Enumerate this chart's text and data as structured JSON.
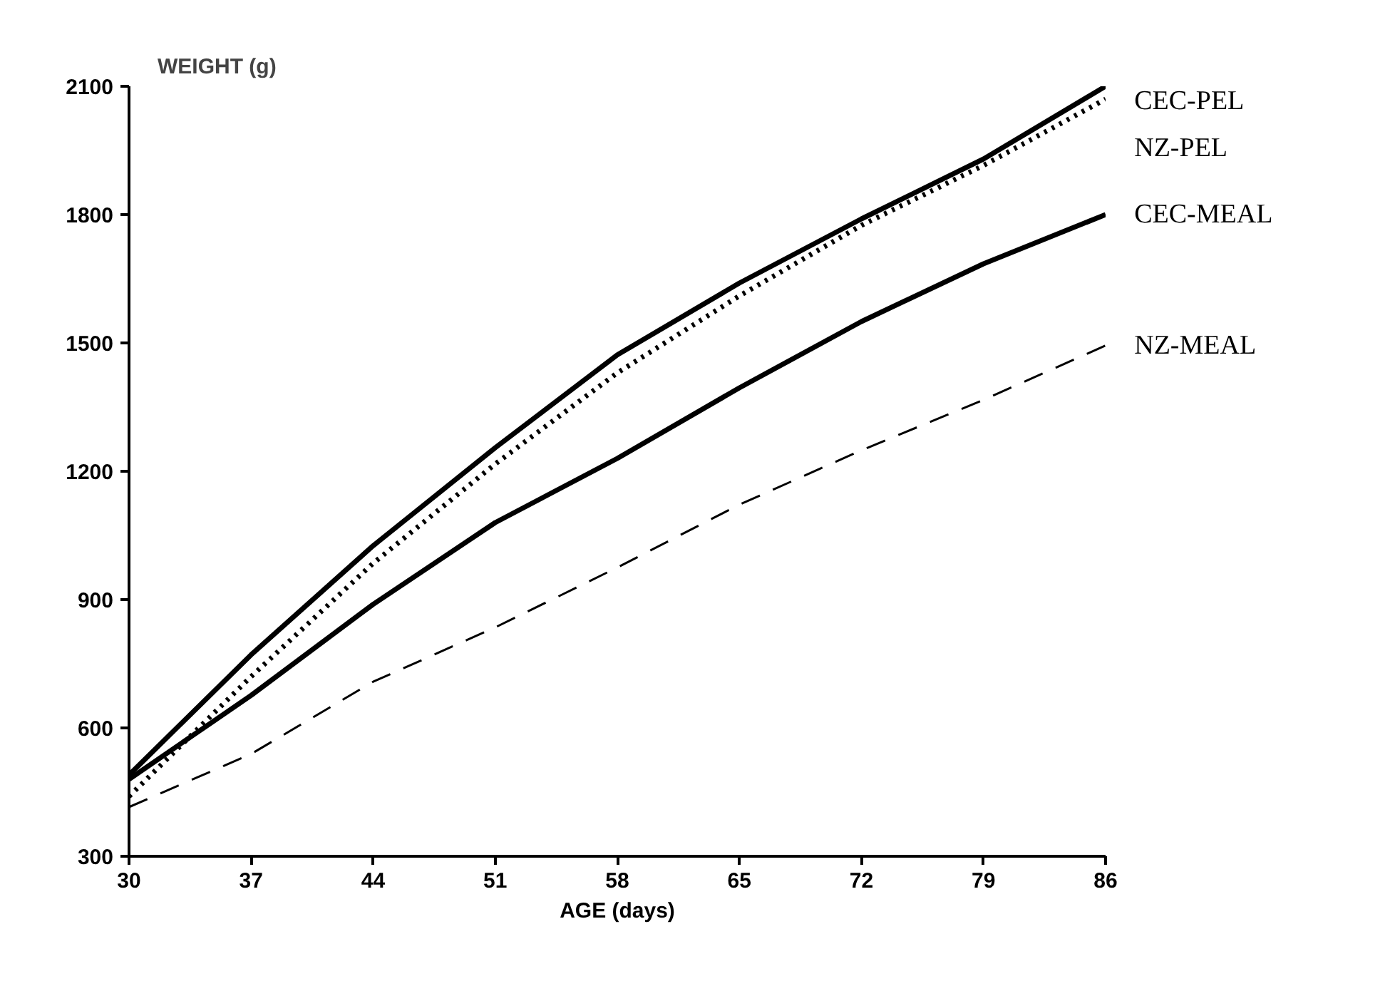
{
  "chart_data": {
    "type": "line",
    "xlabel": "AGE (days)",
    "ylabel": "WEIGHT (g)",
    "x": [
      30,
      37,
      44,
      51,
      58,
      65,
      72,
      79,
      86
    ],
    "xlim": [
      30,
      86
    ],
    "xticks": [
      30,
      37,
      44,
      51,
      58,
      65,
      72,
      79,
      86
    ],
    "ylim": [
      300,
      2100
    ],
    "yticks": [
      300,
      600,
      900,
      1200,
      1500,
      1800,
      2100
    ],
    "grid": false,
    "legend": false,
    "marker": "none",
    "series": [
      {
        "name": "CEC-PEL",
        "color": "#000000",
        "line_style": "solid",
        "values": [
          490,
          771,
          1026,
          1255,
          1472,
          1640,
          1790,
          1930,
          2100
        ]
      },
      {
        "name": "NZ-PEL",
        "color": "#000000",
        "line_style": "dotted",
        "values": [
          440,
          720,
          985,
          1217,
          1430,
          1610,
          1775,
          1915,
          2070
        ]
      },
      {
        "name": "CEC-MEAL",
        "color": "#000000",
        "line_style": "solid",
        "values": [
          480,
          676,
          889,
          1080,
          1230,
          1395,
          1550,
          1685,
          1800
        ]
      },
      {
        "name": "NZ-MEAL",
        "color": "#000000",
        "line_style": "dashed",
        "values": [
          415,
          539,
          708,
          835,
          975,
          1122,
          1249,
          1367,
          1494
        ]
      }
    ]
  }
}
